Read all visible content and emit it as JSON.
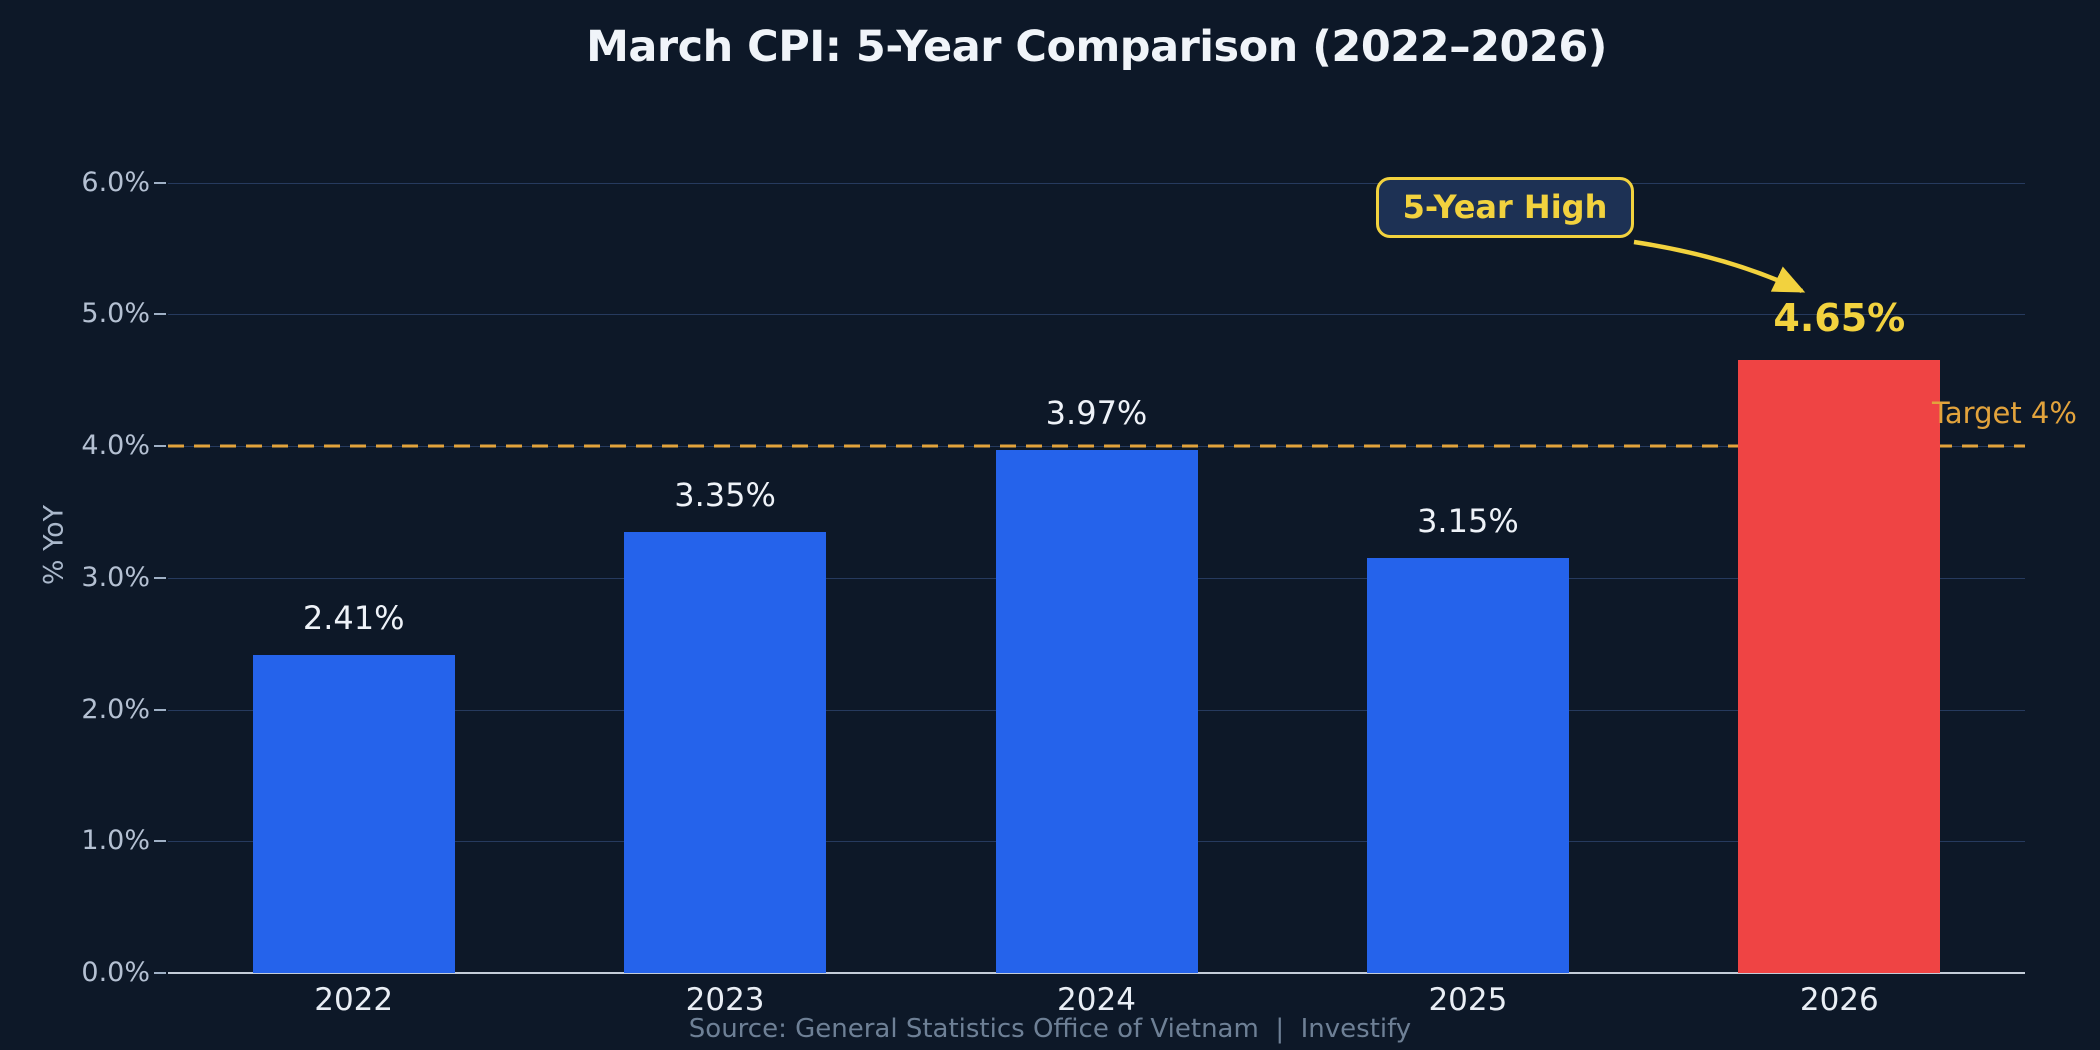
{
  "chart_data": {
    "type": "bar",
    "title": "March CPI: 5-Year Comparison (2022–2026)",
    "ylabel": "% YoY",
    "xlabel": "",
    "categories": [
      "2022",
      "2023",
      "2024",
      "2025",
      "2026"
    ],
    "values": [
      2.41,
      3.35,
      3.97,
      3.15,
      4.65
    ],
    "value_labels": [
      "2.41%",
      "3.35%",
      "3.97%",
      "3.15%",
      "4.65%"
    ],
    "highlight_index": 4,
    "ylim": [
      0,
      6.3
    ],
    "ytick_values": [
      0,
      1,
      2,
      3,
      4,
      5,
      6
    ],
    "ytick_labels": [
      "0.0%",
      "1.0%",
      "2.0%",
      "3.0%",
      "4.0%",
      "5.0%",
      "6.0%"
    ],
    "grid": true,
    "legend": "none",
    "target_line": {
      "value": 4.0,
      "label": "Target 4%",
      "style": "dashed"
    },
    "annotation": {
      "label": "5-Year High",
      "points_to_value": "4.65%",
      "points_to_category": "2026"
    },
    "source": "Source: General Statistics Office of Vietnam  |  Investify"
  },
  "colors": {
    "background": "#0d1828",
    "title_text": "#f0f4f9",
    "bar_blue": "#2563eb",
    "bar_red": "#ef4444",
    "bar_colors": [
      "#2563eb",
      "#2563eb",
      "#2563eb",
      "#2563eb",
      "#ef4444"
    ],
    "value_label_text": "#eef2f8",
    "highlight_text": "#f2d23e",
    "target_orange": "#e2a33c",
    "gridline": "#263a5e",
    "axis_line": "#c3ccd9",
    "tick_mark": "#9fb0c5",
    "y_tick_text": "#b4c0d2",
    "x_tick_text": "#e9eef5",
    "ylabel_text": "#aab8cb",
    "source_text": "#6e8096",
    "annotation_fill": "#1d3154",
    "annotation_border": "#f2d23e",
    "annotation_text": "#f2d23e"
  }
}
